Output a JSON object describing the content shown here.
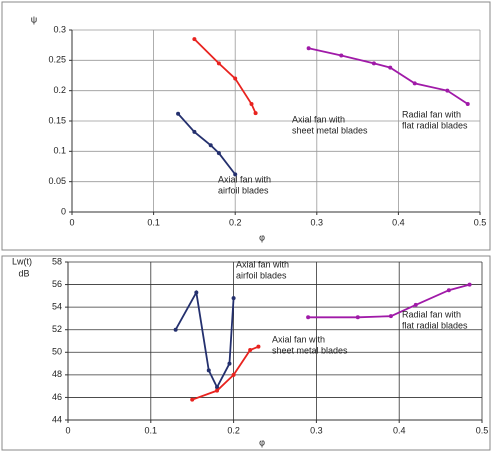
{
  "chart_data": [
    {
      "type": "line",
      "y_label": "ψ",
      "x_label": "φ",
      "xlim": [
        0,
        0.5
      ],
      "xticks": [
        0,
        0.1,
        0.2,
        0.3,
        0.4,
        0.5
      ],
      "ylim": [
        0,
        0.3
      ],
      "yticks": [
        0,
        0.05,
        0.1,
        0.15,
        0.2,
        0.25,
        0.3
      ],
      "grid": true,
      "series": [
        {
          "color": "#e8231f",
          "x": [
            0.15,
            0.18,
            0.2,
            0.22,
            0.225
          ],
          "values": [
            0.285,
            0.245,
            0.22,
            0.178,
            0.163
          ]
        },
        {
          "color": "#24306e",
          "x": [
            0.13,
            0.15,
            0.17,
            0.18,
            0.2
          ],
          "values": [
            0.162,
            0.132,
            0.11,
            0.097,
            0.062
          ]
        },
        {
          "color": "#a01aa8",
          "x": [
            0.29,
            0.33,
            0.37,
            0.39,
            0.42,
            0.46,
            0.485
          ],
          "values": [
            0.27,
            0.258,
            0.245,
            0.238,
            0.212,
            0.2,
            0.178
          ]
        }
      ],
      "annotations": [
        [
          "Axial fan with",
          "sheet metal blades"
        ],
        [
          "Radial fan with",
          "flat radial blades"
        ],
        [
          "Axial fan with",
          "airfoil blades"
        ]
      ]
    },
    {
      "type": "line",
      "y_label": [
        "Lw(t)",
        "dB"
      ],
      "x_label": "φ",
      "xlim": [
        0,
        0.5
      ],
      "xticks": [
        0,
        0.1,
        0.2,
        0.3,
        0.4,
        0.5
      ],
      "ylim": [
        44,
        58
      ],
      "yticks": [
        44,
        46,
        48,
        50,
        52,
        54,
        56,
        58
      ],
      "grid": true,
      "series": [
        {
          "color": "#24306e",
          "x": [
            0.13,
            0.155,
            0.17,
            0.18,
            0.195,
            0.2
          ],
          "values": [
            52,
            55.3,
            48.4,
            46.9,
            49,
            54.8
          ]
        },
        {
          "color": "#e8231f",
          "x": [
            0.15,
            0.18,
            0.2,
            0.22,
            0.23
          ],
          "values": [
            45.8,
            46.6,
            48,
            50.2,
            50.5
          ]
        },
        {
          "color": "#a01aa8",
          "x": [
            0.29,
            0.35,
            0.39,
            0.42,
            0.46,
            0.485
          ],
          "values": [
            53.1,
            53.1,
            53.2,
            54.2,
            55.5,
            56
          ]
        }
      ],
      "annotations": [
        [
          "Axial fan with",
          "airfoil blades"
        ],
        [
          "Radial fan with",
          "flat radial blades"
        ],
        [
          "Axial fan with",
          "sheet metal blades"
        ]
      ]
    }
  ]
}
